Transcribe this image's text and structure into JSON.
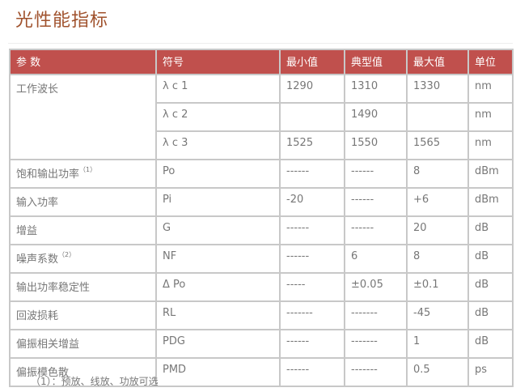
{
  "title": "光性能指标",
  "table": {
    "headers": [
      "参 数",
      "符号",
      "最小值",
      "典型值",
      "最大值",
      "单位"
    ],
    "wavelength_param": "工作波长",
    "wavelength_rows": [
      {
        "symbol": "λ c 1",
        "min": "1290",
        "typ": "1310",
        "max": "1330",
        "unit": "nm"
      },
      {
        "symbol": "λ c 2",
        "min": "",
        "typ": "1490",
        "max": "",
        "unit": "nm"
      },
      {
        "symbol": "λ c 3",
        "min": "1525",
        "typ": "1550",
        "max": "1565",
        "unit": "nm"
      }
    ],
    "rows": [
      {
        "param": "饱和输出功率",
        "note": "（1）",
        "symbol": "Po",
        "min": "------",
        "typ": "------",
        "max": "8",
        "unit": "dBm"
      },
      {
        "param": "输入功率",
        "note": "",
        "symbol": "Pi",
        "min": "-20",
        "typ": "------",
        "max": "+6",
        "unit": "dBm"
      },
      {
        "param": "增益",
        "note": "",
        "symbol": "G",
        "min": "------",
        "typ": "------",
        "max": "20",
        "unit": "dB"
      },
      {
        "param": "噪声系数",
        "note": "（2）",
        "symbol": "NF",
        "min": "------",
        "typ": "6",
        "max": "8",
        "unit": "dB"
      },
      {
        "param": "输出功率稳定性",
        "note": "",
        "symbol": "Δ Po",
        "min": "-----",
        "typ": "±0.05",
        "max": "±0.1",
        "unit": "dB"
      },
      {
        "param": "回波损耗",
        "note": "",
        "symbol": "RL",
        "min": "-------",
        "typ": "-------",
        "max": "-45",
        "unit": "dB"
      },
      {
        "param": "偏振相关增益",
        "note": "",
        "symbol": "PDG",
        "min": "------",
        "typ": "-------",
        "max": "1",
        "unit": "dB"
      },
      {
        "param": "偏振模色散",
        "note": "",
        "symbol": "PMD",
        "min": "------",
        "typ": "-------",
        "max": "0.5",
        "unit": "ps"
      }
    ]
  },
  "footnote": "（1）：预放、线放、功放可选"
}
